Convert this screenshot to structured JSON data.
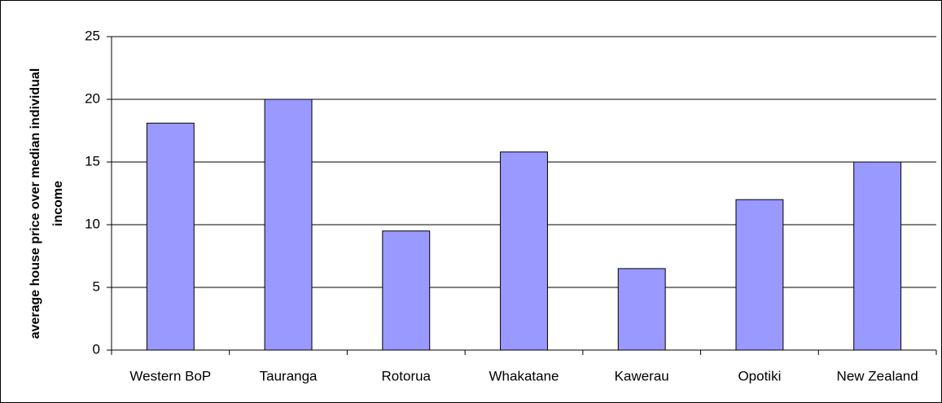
{
  "chart_data": {
    "type": "bar",
    "ylabel": [
      "average house price over median individual",
      "income"
    ],
    "categories": [
      "Western BoP",
      "Tauranga",
      "Rotorua",
      "Whakatane",
      "Kawerau",
      "Opotiki",
      "New Zealand"
    ],
    "values": [
      18.1,
      20,
      9.5,
      15.8,
      6.5,
      12,
      15
    ],
    "color": "#9999ff",
    "ylim": [
      0,
      25
    ],
    "yticks": [
      0,
      5,
      10,
      15,
      20,
      25
    ],
    "grid": true
  }
}
